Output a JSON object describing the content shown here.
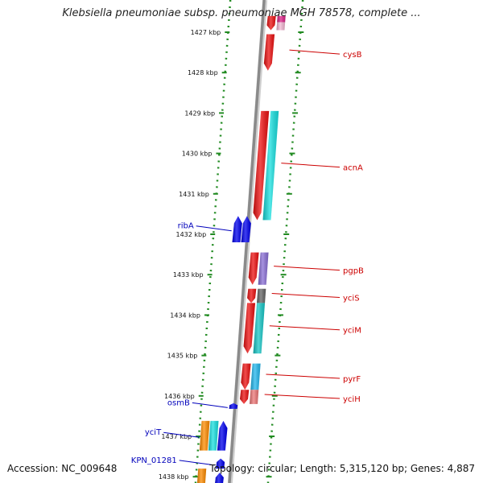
{
  "title": "Klebsiella pneumoniae subsp. pneumoniae MGH 78578, complete ...",
  "footer": {
    "accession": "Accession: NC_009648",
    "summary": "Topology: circular; Length: 5,315,120 bp; Genes: 4,887"
  },
  "ticks": [
    "1427 kbp",
    "1428 kbp",
    "1429 kbp",
    "1430 kbp",
    "1431 kbp",
    "1432 kbp",
    "1433 kbp",
    "1434 kbp",
    "1435 kbp",
    "1436 kbp",
    "1437 kbp",
    "1438 kbp"
  ],
  "colors": {
    "backbone": "#8a8a8a",
    "tick": "#228b22",
    "label_right": "#cc0000",
    "label_left": "#0000bb"
  },
  "genes": [
    {
      "id": "cysB",
      "label": "cysB",
      "side": "right",
      "start_kbp": 1427.05,
      "end_kbp": 1427.95,
      "lane": 0,
      "color": "#ee1111",
      "dir": "down"
    },
    {
      "id": "acnA",
      "label": "acnA",
      "side": "right",
      "start_kbp": 1428.95,
      "end_kbp": 1431.65,
      "lane": 0,
      "color": "#ee1111",
      "dir": "down"
    },
    {
      "id": "acnA-cog",
      "label": "",
      "side": "right",
      "start_kbp": 1428.95,
      "end_kbp": 1431.65,
      "lane": 1,
      "color": "#18e0e0",
      "dir": "none"
    },
    {
      "id": "ribA",
      "label": "ribA",
      "side": "left",
      "start_kbp": 1431.55,
      "end_kbp": 1432.2,
      "lane": 0,
      "color": "#0000ee",
      "dir": "up"
    },
    {
      "id": "ribA-2",
      "label": "",
      "side": "left",
      "start_kbp": 1431.55,
      "end_kbp": 1432.2,
      "lane": 1,
      "color": "#0000ee",
      "dir": "up"
    },
    {
      "id": "pgpB",
      "label": "pgpB",
      "side": "right",
      "start_kbp": 1432.45,
      "end_kbp": 1433.25,
      "lane": 0,
      "color": "#ee1111",
      "dir": "down"
    },
    {
      "id": "pgpB-cog",
      "label": "",
      "side": "right",
      "start_kbp": 1432.45,
      "end_kbp": 1433.25,
      "lane": 1,
      "color": "#8a6fd6",
      "dir": "none"
    },
    {
      "id": "yciS",
      "label": "yciS",
      "side": "right",
      "start_kbp": 1433.35,
      "end_kbp": 1433.7,
      "lane": 0,
      "color": "#ee1111",
      "dir": "down"
    },
    {
      "id": "yciS-cog",
      "label": "",
      "side": "right",
      "start_kbp": 1433.35,
      "end_kbp": 1433.7,
      "lane": 1,
      "color": "#666666",
      "dir": "none"
    },
    {
      "id": "yciM",
      "label": "yciM",
      "side": "right",
      "start_kbp": 1433.7,
      "end_kbp": 1434.95,
      "lane": 0,
      "color": "#ee1111",
      "dir": "down"
    },
    {
      "id": "yciM-cog",
      "label": "",
      "side": "right",
      "start_kbp": 1433.7,
      "end_kbp": 1434.95,
      "lane": 1,
      "color": "#18c8c8",
      "dir": "none"
    },
    {
      "id": "pyrF",
      "label": "pyrF",
      "side": "right",
      "start_kbp": 1435.2,
      "end_kbp": 1435.85,
      "lane": 0,
      "color": "#ee1111",
      "dir": "down"
    },
    {
      "id": "pyrF-cog",
      "label": "",
      "side": "right",
      "start_kbp": 1435.2,
      "end_kbp": 1435.85,
      "lane": 1,
      "color": "#22b8ee",
      "dir": "none"
    },
    {
      "id": "yciH",
      "label": "yciH",
      "side": "right",
      "start_kbp": 1435.85,
      "end_kbp": 1436.2,
      "lane": 0,
      "color": "#ee1111",
      "dir": "down"
    },
    {
      "id": "yciH-cog",
      "label": "",
      "side": "right",
      "start_kbp": 1435.85,
      "end_kbp": 1436.2,
      "lane": 1,
      "color": "#ee7777",
      "dir": "none"
    },
    {
      "id": "osmB",
      "label": "osmB",
      "side": "left",
      "start_kbp": 1436.18,
      "end_kbp": 1436.32,
      "lane": 1,
      "color": "#0000ee",
      "dir": "up"
    },
    {
      "id": "yciT",
      "label": "yciT",
      "side": "left",
      "start_kbp": 1436.62,
      "end_kbp": 1437.35,
      "lane": -2,
      "color": "#ff8c00",
      "dir": "none"
    },
    {
      "id": "yciT-cog",
      "label": "",
      "side": "left",
      "start_kbp": 1436.62,
      "end_kbp": 1437.35,
      "lane": -1,
      "color": "#18e0e0",
      "dir": "none"
    },
    {
      "id": "yciT-gene",
      "label": "",
      "side": "left",
      "start_kbp": 1436.62,
      "end_kbp": 1437.35,
      "lane": 0,
      "color": "#0000ee",
      "dir": "up"
    },
    {
      "id": "KPN_01281",
      "label": "KPN_01281",
      "side": "left",
      "start_kbp": 1437.55,
      "end_kbp": 1437.8,
      "lane": 0,
      "color": "#0000ee",
      "dir": "up"
    },
    {
      "id": "lower-1",
      "label": "",
      "side": "left",
      "start_kbp": 1437.8,
      "end_kbp": 1438.3,
      "lane": -2,
      "color": "#ff8c00",
      "dir": "none"
    },
    {
      "id": "lower-2",
      "label": "",
      "side": "left",
      "start_kbp": 1437.9,
      "end_kbp": 1438.3,
      "lane": 0,
      "color": "#0000ee",
      "dir": "up"
    },
    {
      "id": "top-1",
      "label": "",
      "side": "right",
      "start_kbp": 1426.6,
      "end_kbp": 1426.95,
      "lane": 0,
      "color": "#ee1111",
      "dir": "down"
    },
    {
      "id": "top-2",
      "label": "",
      "side": "right",
      "start_kbp": 1426.6,
      "end_kbp": 1426.75,
      "lane": 1,
      "color": "#dd2288",
      "dir": "none"
    },
    {
      "id": "top-3",
      "label": "",
      "side": "right",
      "start_kbp": 1426.75,
      "end_kbp": 1426.95,
      "lane": 1,
      "color": "#f4b8d4",
      "dir": "none"
    }
  ]
}
